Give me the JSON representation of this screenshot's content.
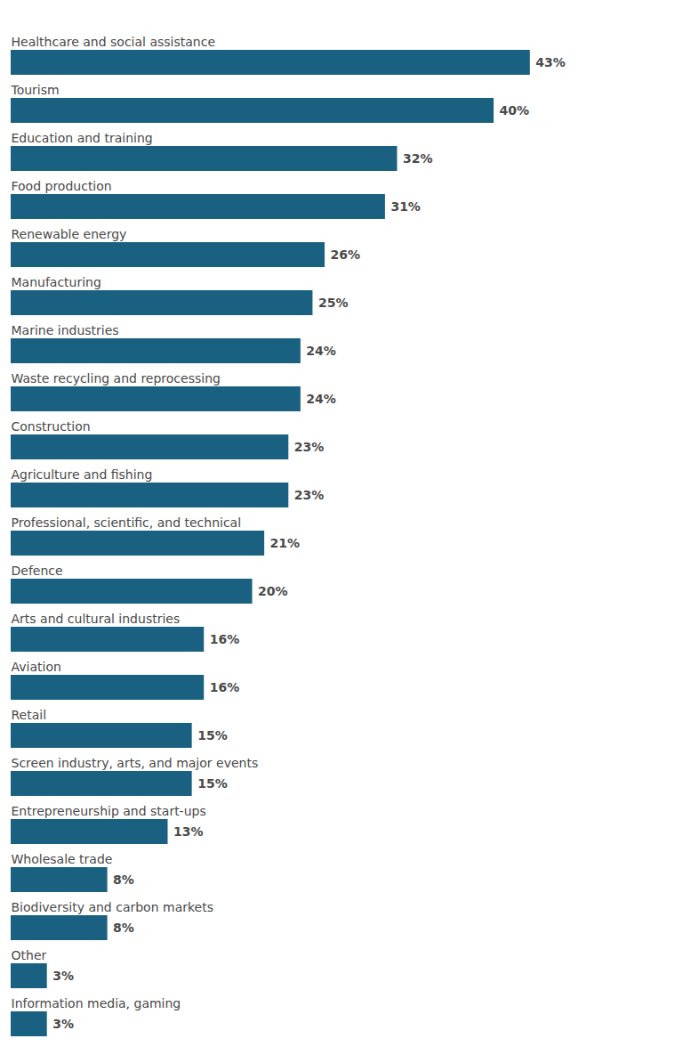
{
  "chart_data": {
    "type": "bar",
    "orientation": "horizontal",
    "categories": [
      "Healthcare and social assistance",
      "Tourism",
      "Education and training",
      "Food production",
      "Renewable energy",
      "Manufacturing",
      "Marine industries",
      "Waste recycling and reprocessing",
      "Construction",
      "Agriculture and fishing",
      "Professional, scientific, and technical",
      "Defence",
      "Arts and cultural industries",
      "Aviation",
      "Retail",
      "Screen industry, arts, and major events",
      "Entrepreneurship and start-ups",
      "Wholesale trade",
      "Biodiversity and carbon markets",
      "Other",
      "Information media, gaming"
    ],
    "values": [
      43,
      40,
      32,
      31,
      26,
      25,
      24,
      24,
      23,
      23,
      21,
      20,
      16,
      16,
      15,
      15,
      13,
      8,
      8,
      3,
      3
    ],
    "value_labels": [
      "43%",
      "40%",
      "32%",
      "31%",
      "26%",
      "25%",
      "24%",
      "24%",
      "23%",
      "23%",
      "21%",
      "20%",
      "16%",
      "16%",
      "15%",
      "15%",
      "13%",
      "8%",
      "8%",
      "3%",
      "3%"
    ],
    "color": "#1a6080",
    "xlim": [
      0,
      52
    ],
    "data_labels": true,
    "tick_labels": false
  }
}
